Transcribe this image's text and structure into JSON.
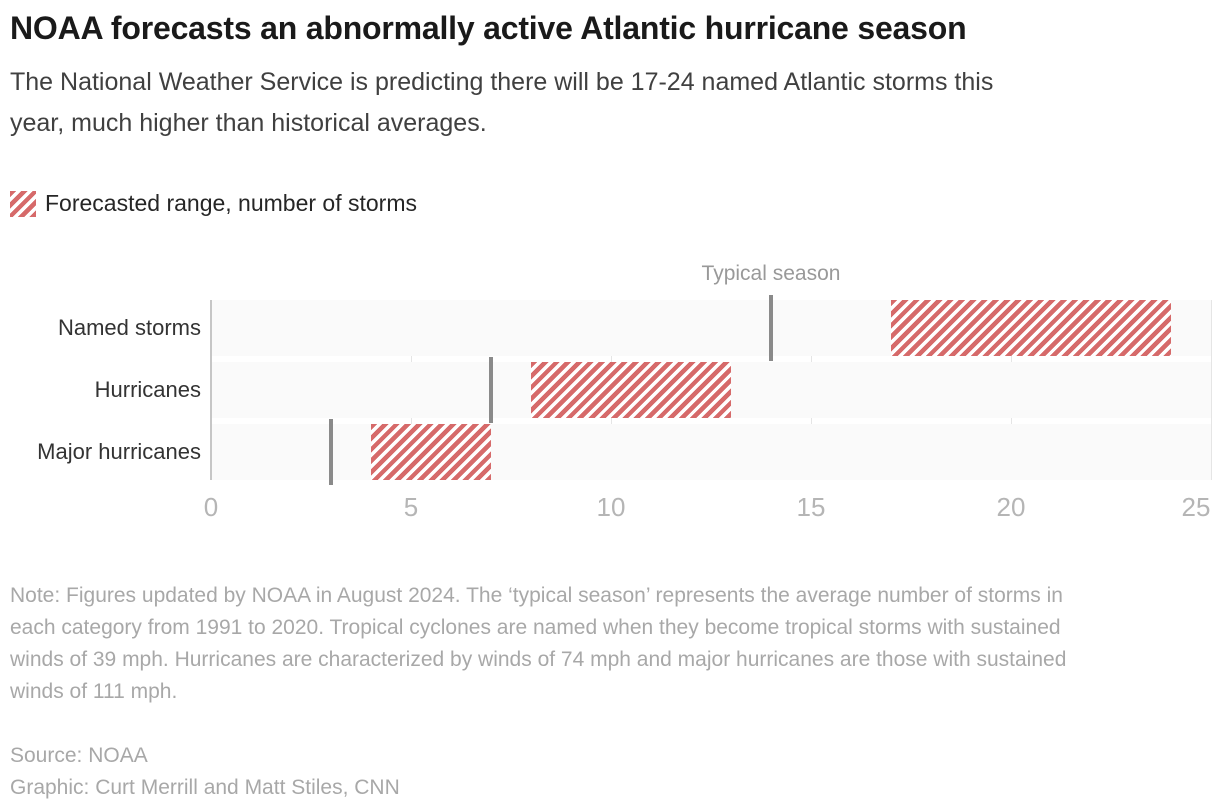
{
  "header": {
    "title": "NOAA forecasts an abnormally active Atlantic hurricane season",
    "subtitle": "The National Weather Service is predicting there will be 17-24 named Atlantic storms this year, much higher than historical averages."
  },
  "legend": {
    "label": "Forecasted range, number of storms",
    "swatch_pattern": "red-diagonal-hatch",
    "swatch_color": "#d66a6a"
  },
  "chart_data": {
    "type": "bar",
    "subtype": "horizontal-range-bars",
    "categories": [
      "Named storms",
      "Hurricanes",
      "Major hurricanes"
    ],
    "series": [
      {
        "name": "Forecasted range, number of storms",
        "style": "hatched-range-bar",
        "color": "#d66a6a",
        "ranges": [
          [
            17,
            24
          ],
          [
            8,
            13
          ],
          [
            4,
            7
          ]
        ]
      },
      {
        "name": "Typical season",
        "style": "tick-marker",
        "color": "#8a8a8a",
        "values": [
          14,
          7,
          3
        ]
      }
    ],
    "annotation": {
      "label": "Typical season",
      "x": 14,
      "row": 0
    },
    "xlim": [
      0,
      25
    ],
    "xticks": [
      0,
      5,
      10,
      15,
      20,
      25
    ],
    "grid": "vertical-gridlines-at-ticks",
    "legend_position": "top-left",
    "colors": {
      "bar_hatch": "#d66a6a",
      "typical_marker": "#8a8a8a",
      "row_track": "#fafafa",
      "zero_axis": "#c6c6c6",
      "gridline": "#e5e5e5",
      "axis_label": "#b5b5b5"
    }
  },
  "note": "Note: Figures updated by NOAA in August 2024. The ‘typical season’ represents the average number of storms in each category from 1991 to 2020. Tropical cyclones are named when they become tropical storms with sustained winds of 39 mph. Hurricanes are characterized by winds of 74 mph and major hurricanes are those with sustained winds of 111 mph.",
  "source": "Source: NOAA",
  "credit": "Graphic: Curt Merrill and Matt Stiles, CNN"
}
